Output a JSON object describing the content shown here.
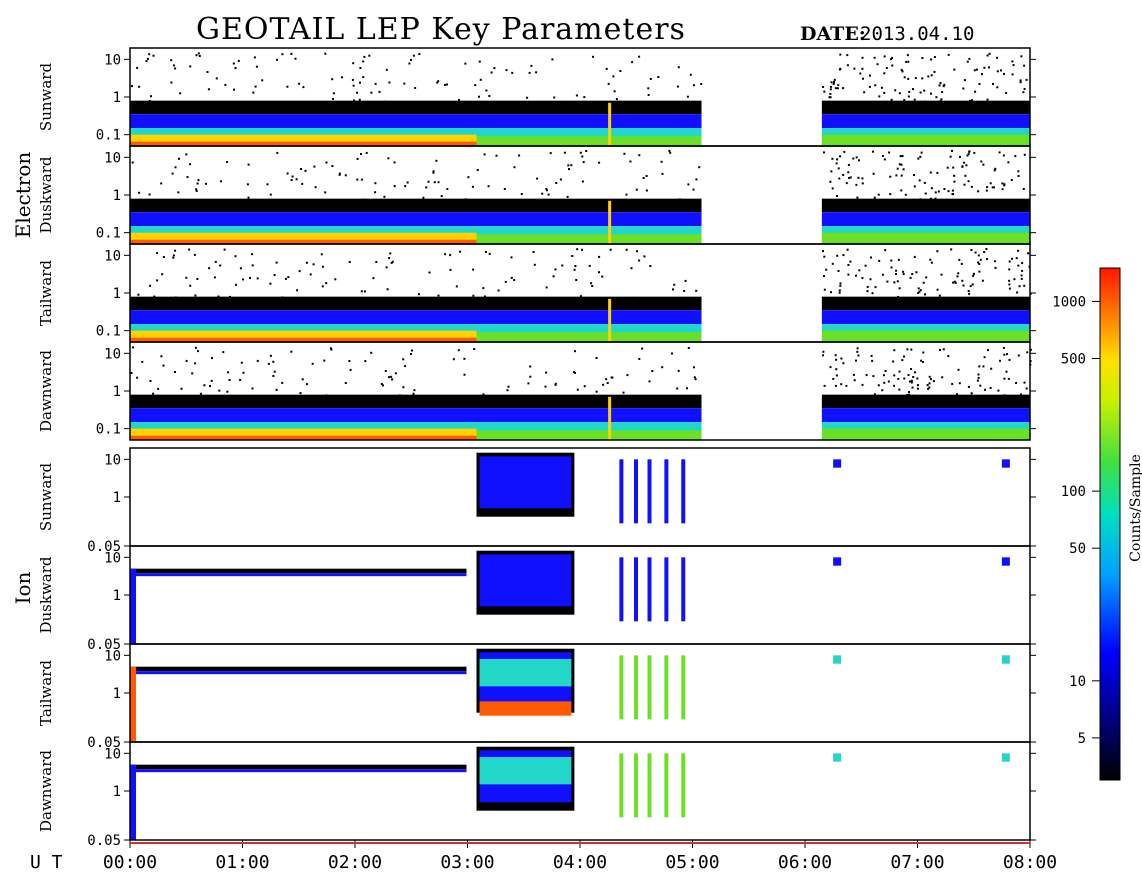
{
  "title": "GEOTAIL LEP Key Parameters",
  "date_label": "DATE:",
  "date_value": "2013.04.10",
  "colors": {
    "axis": "#000000",
    "orange": "#ff5a00",
    "yellow": "#ffd200",
    "green": "#6be024",
    "cyan": "#22d6c8",
    "blue": "#1010ff",
    "black": "#000000",
    "trace": "#cc3333"
  },
  "chart_data": {
    "type": "heatmap",
    "x_axis": {
      "label": "U T",
      "ticks": [
        "00:00",
        "01:00",
        "02:00",
        "03:00",
        "04:00",
        "05:00",
        "06:00",
        "07:00",
        "08:00"
      ],
      "range_hours": [
        0,
        8
      ]
    },
    "data_gap_hours": [
      5.08,
      6.15
    ],
    "groups": [
      {
        "name": "Electron",
        "y_scale": "log",
        "y_ticks": [
          "10",
          "1",
          "0.1"
        ],
        "y_tick_values": [
          10,
          1,
          0.1
        ],
        "y_range": [
          0.05,
          20
        ],
        "panels": [
          {
            "label": "Sunward"
          },
          {
            "label": "Duskward"
          },
          {
            "label": "Tailward"
          },
          {
            "label": "Dawnward"
          }
        ]
      },
      {
        "name": "Ion",
        "y_scale": "log",
        "y_ticks": [
          "10",
          "1",
          "0.05"
        ],
        "y_tick_values": [
          10,
          1,
          0.05
        ],
        "y_range": [
          0.05,
          20
        ],
        "panels": [
          {
            "label": "Sunward"
          },
          {
            "label": "Duskward"
          },
          {
            "label": "Tailward"
          },
          {
            "label": "Dawnward"
          }
        ]
      }
    ],
    "colorbar": {
      "label": "Counts/Sample",
      "scale": "log",
      "ticks": [
        "1000",
        "500",
        "100",
        "50",
        "10",
        "5"
      ],
      "tick_values": [
        1000,
        500,
        100,
        50,
        10,
        5
      ],
      "range": [
        3,
        1500
      ]
    }
  }
}
